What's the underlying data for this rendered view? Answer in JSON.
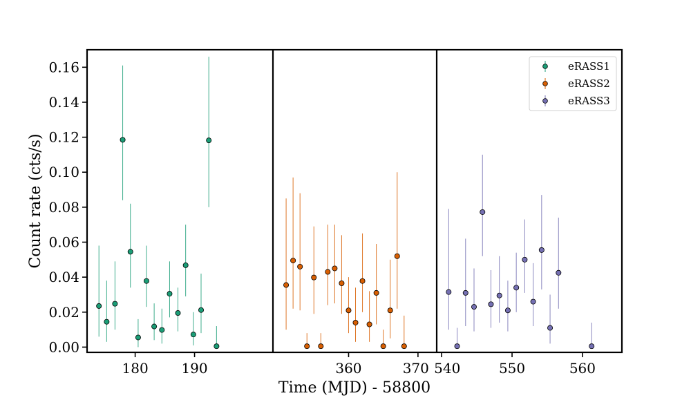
{
  "chart_data": {
    "type": "scatter",
    "title": "",
    "xlabel": "Time (MJD) - 58800",
    "ylabel": "Count rate (cts/s)",
    "ylim": [
      -0.003,
      0.17
    ],
    "yticks": [
      0.0,
      0.02,
      0.04,
      0.06,
      0.08,
      0.1,
      0.12,
      0.14,
      0.16
    ],
    "ytick_labels": [
      "0.00",
      "0.02",
      "0.04",
      "0.06",
      "0.08",
      "0.10",
      "0.12",
      "0.14",
      "0.16"
    ],
    "grid": false,
    "legend_position": "top-right",
    "error_bars": true,
    "panels": [
      {
        "xlim": [
          171.9,
          203.2
        ],
        "xticks": [
          180,
          190
        ],
        "xtick_labels": [
          "180",
          "190"
        ]
      },
      {
        "xlim": [
          349.1,
          372.7
        ],
        "xticks": [
          360,
          370
        ],
        "xtick_labels": [
          "360",
          "370"
        ]
      },
      {
        "xlim": [
          539.3,
          565.6
        ],
        "xticks": [
          540,
          550,
          560
        ],
        "xtick_labels": [
          "540",
          "550",
          "560"
        ]
      }
    ],
    "series": [
      {
        "name": "eRASS1",
        "color": "#1b9e77",
        "panel": 0,
        "points": [
          {
            "x": 173.9,
            "y": 0.0235,
            "lo": 0.006,
            "hi": 0.058
          },
          {
            "x": 175.2,
            "y": 0.0145,
            "lo": 0.003,
            "hi": 0.038
          },
          {
            "x": 176.6,
            "y": 0.0248,
            "lo": 0.01,
            "hi": 0.049
          },
          {
            "x": 177.9,
            "y": 0.1185,
            "lo": 0.084,
            "hi": 0.161
          },
          {
            "x": 179.2,
            "y": 0.0545,
            "lo": 0.034,
            "hi": 0.082
          },
          {
            "x": 180.5,
            "y": 0.0055,
            "lo": 0.0,
            "hi": 0.016
          },
          {
            "x": 181.9,
            "y": 0.0378,
            "lo": 0.023,
            "hi": 0.058
          },
          {
            "x": 183.2,
            "y": 0.0118,
            "lo": 0.004,
            "hi": 0.025
          },
          {
            "x": 184.5,
            "y": 0.0098,
            "lo": 0.002,
            "hi": 0.022
          },
          {
            "x": 185.8,
            "y": 0.0305,
            "lo": 0.017,
            "hi": 0.049
          },
          {
            "x": 187.2,
            "y": 0.0195,
            "lo": 0.009,
            "hi": 0.034
          },
          {
            "x": 188.5,
            "y": 0.0468,
            "lo": 0.029,
            "hi": 0.07
          },
          {
            "x": 189.8,
            "y": 0.0072,
            "lo": 0.001,
            "hi": 0.02
          },
          {
            "x": 191.1,
            "y": 0.0212,
            "lo": 0.008,
            "hi": 0.042
          },
          {
            "x": 192.4,
            "y": 0.1182,
            "lo": 0.08,
            "hi": 0.166
          },
          {
            "x": 193.7,
            "y": 0.0005,
            "lo": 0.0,
            "hi": 0.012
          }
        ]
      },
      {
        "name": "eRASS2",
        "color": "#d95f02",
        "panel": 1,
        "points": [
          {
            "x": 351.0,
            "y": 0.0355,
            "lo": 0.01,
            "hi": 0.085
          },
          {
            "x": 352.0,
            "y": 0.0495,
            "lo": 0.022,
            "hi": 0.097
          },
          {
            "x": 353.0,
            "y": 0.046,
            "lo": 0.021,
            "hi": 0.088
          },
          {
            "x": 354.0,
            "y": 0.0005,
            "lo": 0.0,
            "hi": 0.008
          },
          {
            "x": 355.0,
            "y": 0.0398,
            "lo": 0.019,
            "hi": 0.069
          },
          {
            "x": 356.0,
            "y": 0.0005,
            "lo": 0.0,
            "hi": 0.008
          },
          {
            "x": 357.0,
            "y": 0.043,
            "lo": 0.024,
            "hi": 0.07
          },
          {
            "x": 358.0,
            "y": 0.045,
            "lo": 0.025,
            "hi": 0.07
          },
          {
            "x": 359.0,
            "y": 0.0365,
            "lo": 0.019,
            "hi": 0.064
          },
          {
            "x": 360.0,
            "y": 0.021,
            "lo": 0.008,
            "hi": 0.04
          },
          {
            "x": 361.0,
            "y": 0.014,
            "lo": 0.003,
            "hi": 0.034
          },
          {
            "x": 362.0,
            "y": 0.0378,
            "lo": 0.02,
            "hi": 0.065
          },
          {
            "x": 363.0,
            "y": 0.013,
            "lo": 0.003,
            "hi": 0.032
          },
          {
            "x": 364.0,
            "y": 0.031,
            "lo": 0.013,
            "hi": 0.059
          },
          {
            "x": 365.0,
            "y": 0.0005,
            "lo": 0.0,
            "hi": 0.01
          },
          {
            "x": 366.0,
            "y": 0.021,
            "lo": 0.005,
            "hi": 0.05
          },
          {
            "x": 367.0,
            "y": 0.052,
            "lo": 0.022,
            "hi": 0.1
          },
          {
            "x": 368.0,
            "y": 0.0005,
            "lo": 0.0,
            "hi": 0.018
          }
        ]
      },
      {
        "name": "eRASS3",
        "color": "#7570b3",
        "panel": 2,
        "points": [
          {
            "x": 541.0,
            "y": 0.0315,
            "lo": 0.01,
            "hi": 0.079
          },
          {
            "x": 542.2,
            "y": 0.0005,
            "lo": 0.0,
            "hi": 0.011
          },
          {
            "x": 543.4,
            "y": 0.031,
            "lo": 0.012,
            "hi": 0.062
          },
          {
            "x": 544.6,
            "y": 0.023,
            "lo": 0.009,
            "hi": 0.045
          },
          {
            "x": 545.8,
            "y": 0.0772,
            "lo": 0.052,
            "hi": 0.11
          },
          {
            "x": 547.0,
            "y": 0.0245,
            "lo": 0.011,
            "hi": 0.044
          },
          {
            "x": 548.2,
            "y": 0.0295,
            "lo": 0.014,
            "hi": 0.052
          },
          {
            "x": 549.4,
            "y": 0.021,
            "lo": 0.009,
            "hi": 0.038
          },
          {
            "x": 550.6,
            "y": 0.034,
            "lo": 0.02,
            "hi": 0.054
          },
          {
            "x": 551.8,
            "y": 0.05,
            "lo": 0.031,
            "hi": 0.073
          },
          {
            "x": 553.0,
            "y": 0.026,
            "lo": 0.012,
            "hi": 0.048
          },
          {
            "x": 554.2,
            "y": 0.0555,
            "lo": 0.033,
            "hi": 0.087
          },
          {
            "x": 555.4,
            "y": 0.011,
            "lo": 0.002,
            "hi": 0.03
          },
          {
            "x": 556.6,
            "y": 0.0425,
            "lo": 0.022,
            "hi": 0.074
          },
          {
            "x": 561.3,
            "y": 0.0005,
            "lo": 0.0,
            "hi": 0.014
          }
        ]
      }
    ]
  }
}
